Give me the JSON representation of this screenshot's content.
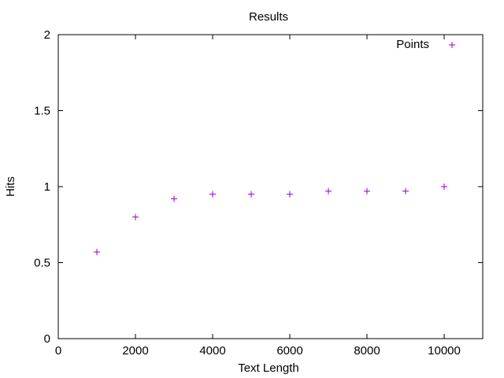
{
  "chart_data": {
    "type": "scatter",
    "title": "Results",
    "xlabel": "Text Length",
    "ylabel": "Hits",
    "xlim": [
      0,
      11000
    ],
    "ylim": [
      0,
      2
    ],
    "x_ticks": [
      0,
      2000,
      4000,
      6000,
      8000,
      10000
    ],
    "y_ticks": [
      0,
      0.5,
      1,
      1.5,
      2
    ],
    "x_tick_labels": [
      "0",
      "2000",
      "4000",
      "6000",
      "8000",
      "10000"
    ],
    "y_tick_labels": [
      "0",
      "0.5",
      "1",
      "1.5",
      "2"
    ],
    "grid": false,
    "legend_position": "top-right",
    "marker": "+",
    "series": [
      {
        "name": "Points",
        "color": "#9400d3",
        "points": [
          {
            "x": 1000,
            "y": 0.57
          },
          {
            "x": 2000,
            "y": 0.8
          },
          {
            "x": 3000,
            "y": 0.92
          },
          {
            "x": 4000,
            "y": 0.95
          },
          {
            "x": 5000,
            "y": 0.95
          },
          {
            "x": 6000,
            "y": 0.95
          },
          {
            "x": 7000,
            "y": 0.97
          },
          {
            "x": 8000,
            "y": 0.97
          },
          {
            "x": 9000,
            "y": 0.97
          },
          {
            "x": 10000,
            "y": 1.0
          }
        ]
      }
    ]
  }
}
